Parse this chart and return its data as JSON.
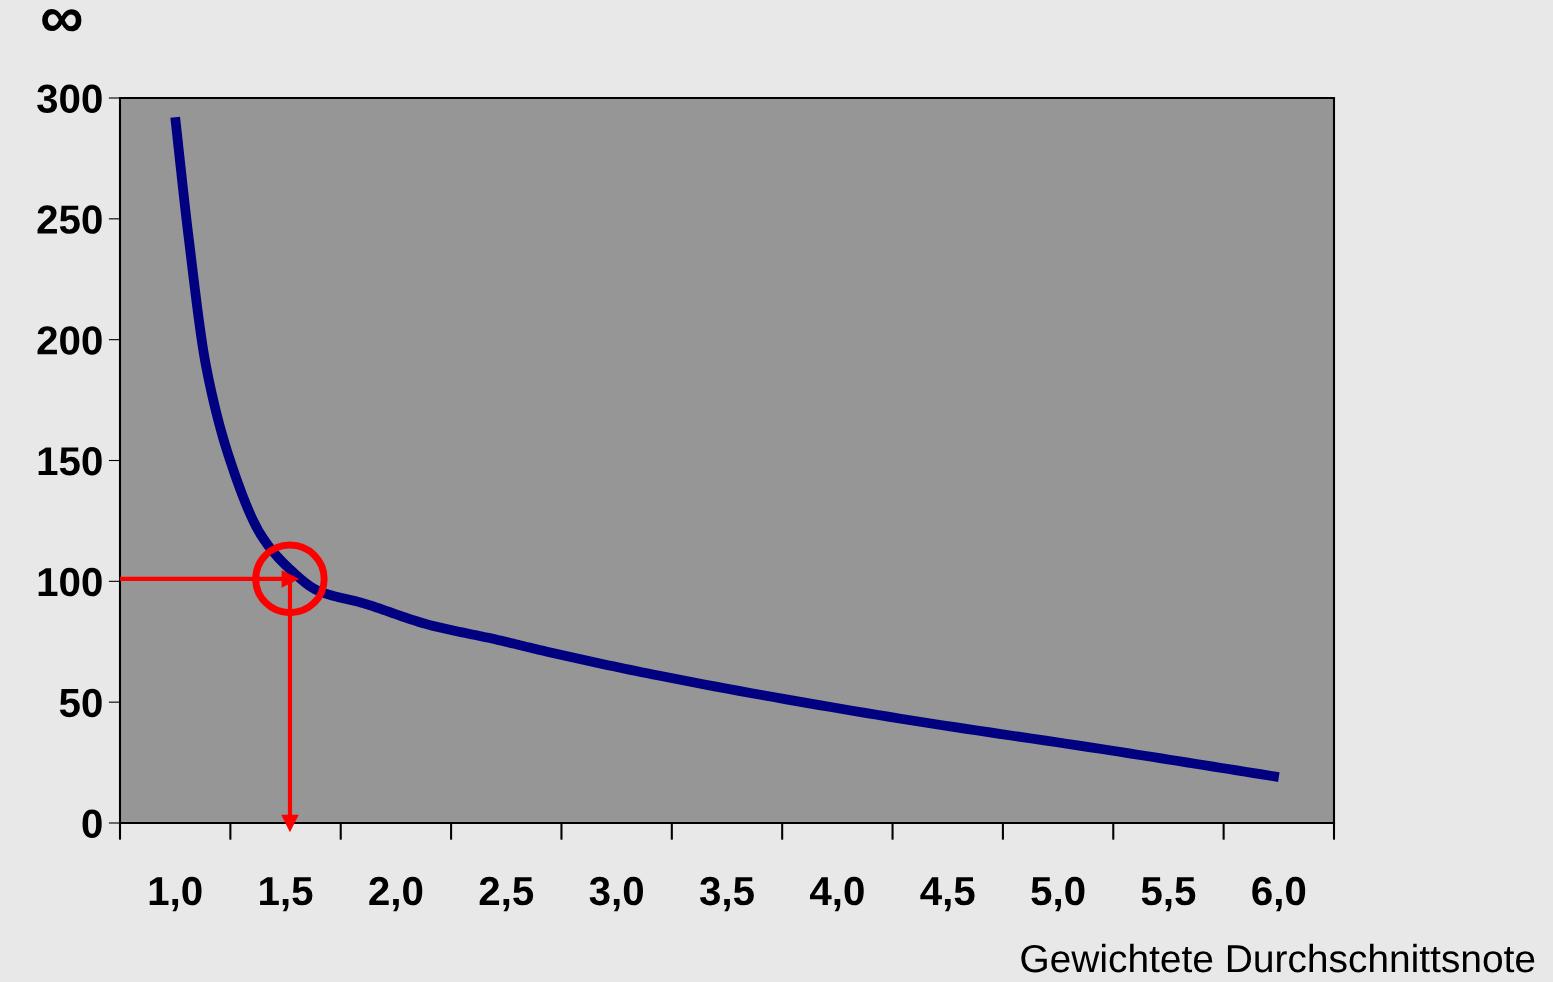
{
  "chart_data": {
    "type": "line",
    "xlabel": "Gewichtete Durchschnittsnote",
    "x": [
      1.0,
      1.06,
      1.14,
      1.26,
      1.39,
      1.52,
      1.65,
      1.85,
      2.15,
      2.45,
      2.68,
      3.19,
      4.23,
      5.24,
      6.0
    ],
    "series": [
      {
        "color": "#000080",
        "values": [
          292,
          243,
          189,
          147,
          119,
          105,
          96,
          91,
          82,
          76,
          71,
          61,
          44,
          30,
          19
        ]
      }
    ],
    "xlim": [
      0.75,
      6.25
    ],
    "xticks": [
      {
        "value": 1.0,
        "label": "1,0"
      },
      {
        "value": 1.5,
        "label": "1,5"
      },
      {
        "value": 2.0,
        "label": "2,0"
      },
      {
        "value": 2.5,
        "label": "2,5"
      },
      {
        "value": 3.0,
        "label": "3,0"
      },
      {
        "value": 3.5,
        "label": "3,5"
      },
      {
        "value": 4.0,
        "label": "4,0"
      },
      {
        "value": 4.5,
        "label": "4,5"
      },
      {
        "value": 5.0,
        "label": "5,0"
      },
      {
        "value": 5.5,
        "label": "5,5"
      },
      {
        "value": 6.0,
        "label": "6,0"
      }
    ],
    "ylim": [
      0,
      300
    ],
    "yticks": [
      0,
      50,
      100,
      150,
      200,
      250,
      300
    ],
    "grid": false,
    "marker": "none",
    "line_style": "solid",
    "ref_lines": [
      {
        "axis": "y",
        "value": 101,
        "color": "#ff0000"
      },
      {
        "axis": "x",
        "value": 1.52,
        "color": "#ff0000"
      }
    ],
    "annotations": [
      "∞"
    ]
  }
}
